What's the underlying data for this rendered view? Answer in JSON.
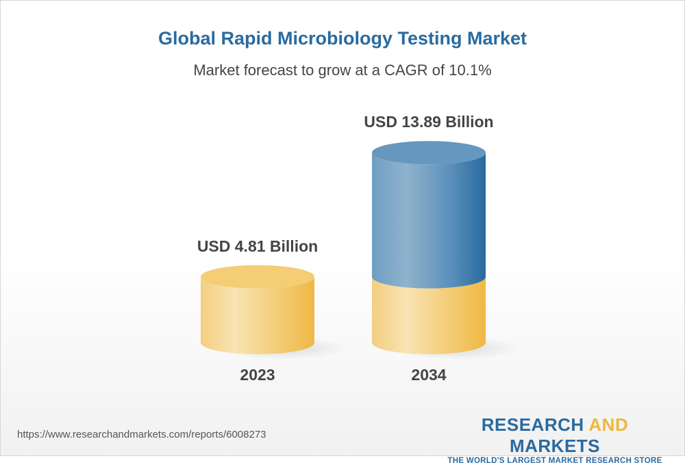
{
  "chart_data": {
    "type": "bar",
    "title": "Global Rapid Microbiology Testing Market",
    "subtitle": "Market forecast to grow at a CAGR of 10.1%",
    "categories": [
      "2023",
      "2034"
    ],
    "values": [
      4.81,
      13.89
    ],
    "data_labels": [
      "USD 4.81 Billion",
      "USD 13.89 Billion"
    ],
    "unit": "USD Billion",
    "style": "3d-cylinder",
    "colors": {
      "base": "#f2c15a",
      "growth": "#3f7fb0",
      "title": "#2a6aa0",
      "text": "#444444"
    }
  },
  "footer": {
    "url": "https://www.researchandmarkets.com/reports/6008273",
    "logo_part1": "RESEARCH ",
    "logo_part2": "AND",
    "logo_part3": " MARKETS",
    "logo_tagline": "THE WORLD'S LARGEST MARKET RESEARCH STORE"
  }
}
